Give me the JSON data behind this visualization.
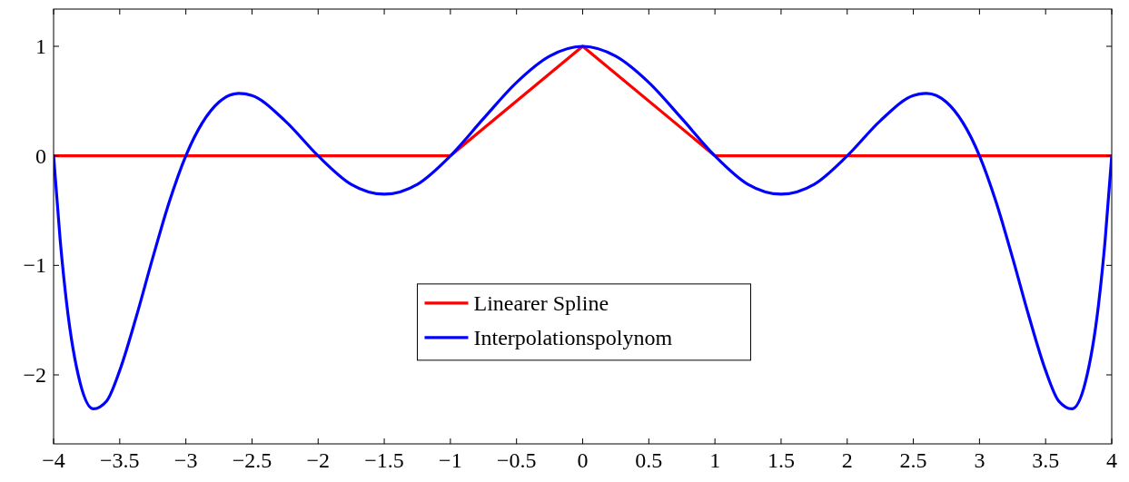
{
  "chart_data": {
    "type": "line",
    "xlim": [
      -4,
      4
    ],
    "ylim": [
      -2.63,
      1.34
    ],
    "xticks": [
      {
        "value": -4,
        "label": "−4"
      },
      {
        "value": -3.5,
        "label": "−3.5"
      },
      {
        "value": -3,
        "label": "−3"
      },
      {
        "value": -2.5,
        "label": "−2.5"
      },
      {
        "value": -2,
        "label": "−2"
      },
      {
        "value": -1.5,
        "label": "−1.5"
      },
      {
        "value": -1,
        "label": "−1"
      },
      {
        "value": -0.5,
        "label": "−0.5"
      },
      0,
      0.5,
      1,
      1.5,
      2,
      2.5,
      3,
      3.5,
      4
    ],
    "yticks": [
      {
        "value": -2,
        "label": "−2"
      },
      {
        "value": -1,
        "label": "−1"
      },
      0,
      1
    ],
    "grid": false,
    "legend": "bottom",
    "marker": "none",
    "line_style": "solid",
    "series": [
      {
        "name": "Linearer Spline",
        "color": "#ff0000",
        "x": [
          -4,
          -1,
          0,
          1,
          4
        ],
        "values": [
          0,
          0,
          1,
          0,
          0
        ]
      },
      {
        "name": "Interpolationspolynom",
        "color": "#0000ff",
        "x": [
          -4,
          -3.95,
          -3.9,
          -3.8,
          -3.7,
          -3.6,
          -3.5,
          -3.375,
          -3.25,
          -3.125,
          -3,
          -2.75,
          -2.6,
          -2.5,
          -2.25,
          -2,
          -1.75,
          -1.5,
          -1.25,
          -1,
          -0.75,
          -0.5,
          -0.25,
          0,
          0.25,
          0.5,
          0.75,
          1,
          1.25,
          1.5,
          1.75,
          2,
          2.25,
          2.5,
          2.6,
          2.75,
          3,
          3.125,
          3.25,
          3.375,
          3.5,
          3.6,
          3.7,
          3.8,
          3.9,
          3.95,
          4
        ],
        "values": [
          0,
          -0.77,
          -1.36,
          -2.07,
          -2.31,
          -2.24,
          -1.96,
          -1.47,
          -0.93,
          -0.42,
          0,
          0.49,
          0.57,
          0.55,
          0.32,
          0,
          -0.26,
          -0.35,
          -0.26,
          0,
          0.34,
          0.67,
          0.91,
          1,
          0.91,
          0.67,
          0.34,
          0,
          -0.26,
          -0.35,
          -0.26,
          0,
          0.32,
          0.55,
          0.57,
          0.49,
          0,
          -0.42,
          -0.93,
          -1.47,
          -1.96,
          -2.24,
          -2.31,
          -2.07,
          -1.36,
          -0.77,
          0
        ]
      }
    ]
  }
}
